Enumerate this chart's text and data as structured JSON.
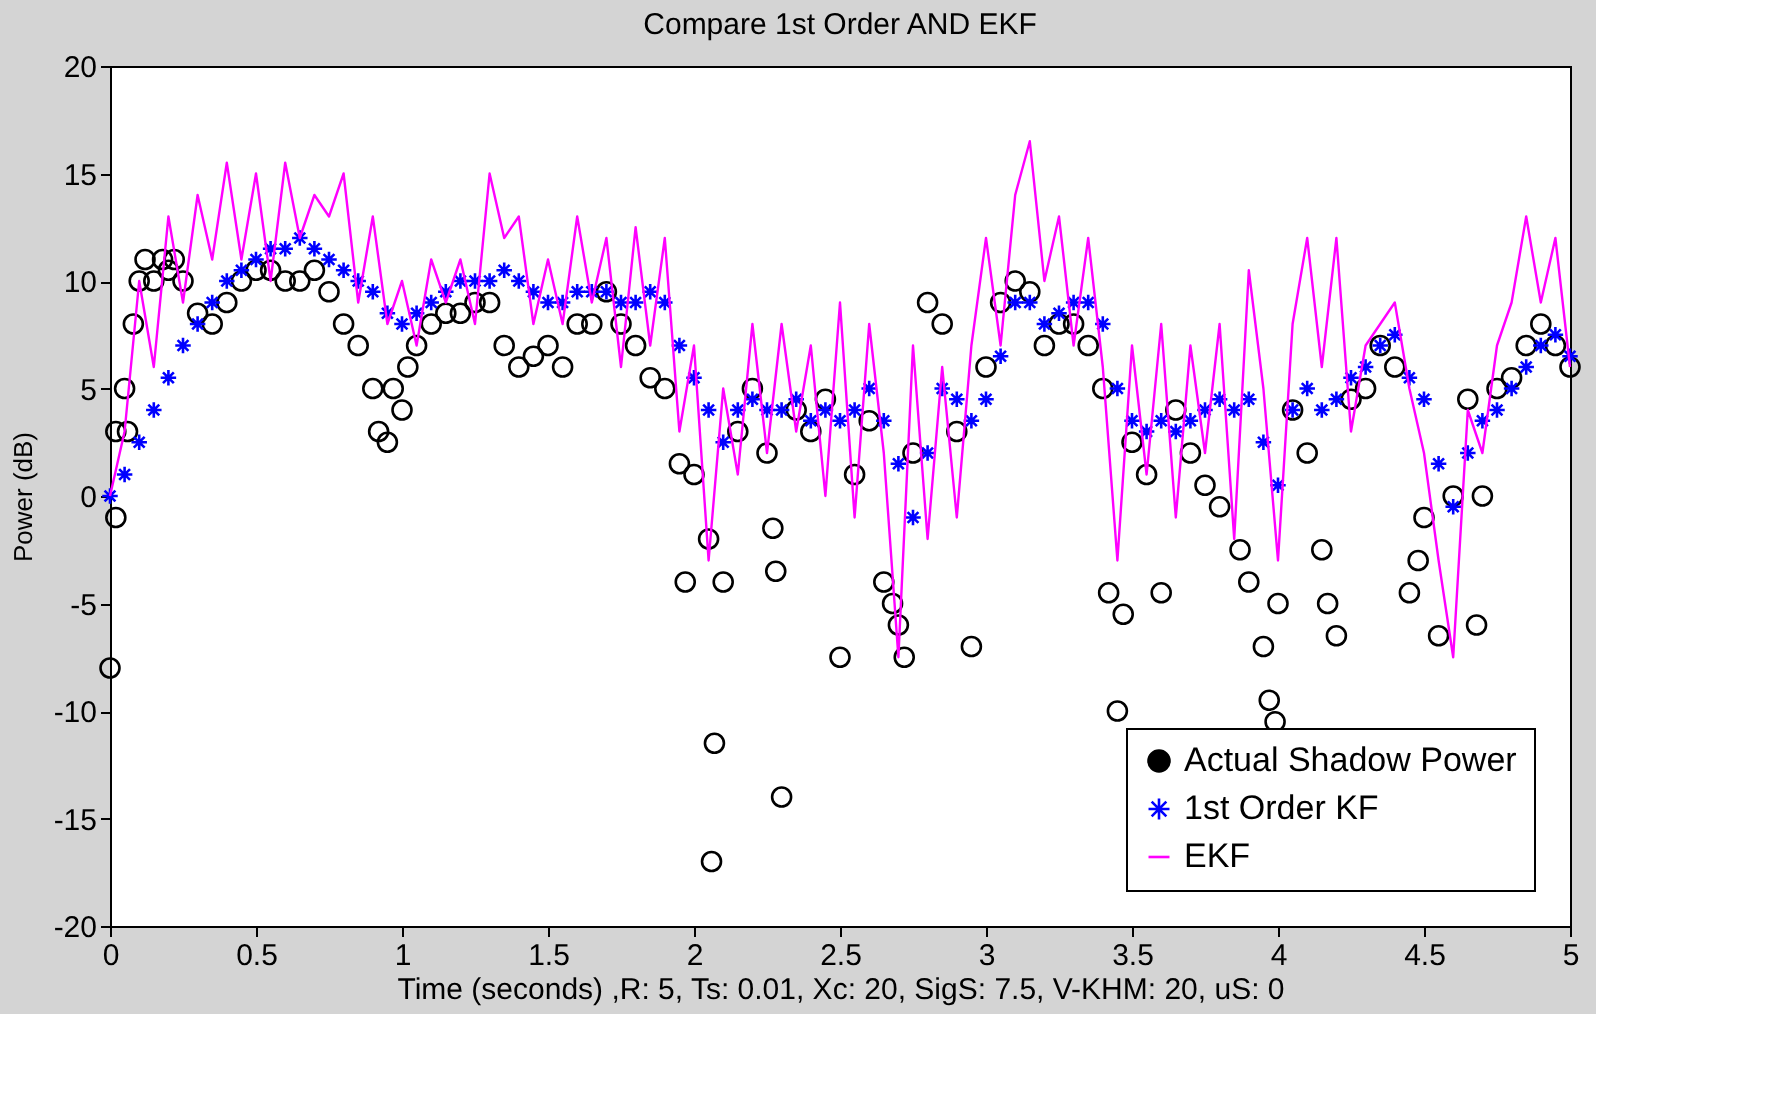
{
  "chart_data": {
    "type": "line",
    "title": "Compare 1st Order AND EKF",
    "xlabel": "Time (seconds) ,R: 5, Ts: 0.01, Xc: 20, SigS: 7.5, V-KHM: 20, uS: 0",
    "ylabel": "Power (dB)",
    "xlim": [
      0,
      5
    ],
    "xticks": [
      0,
      0.5,
      1,
      1.5,
      2,
      2.5,
      3,
      3.5,
      4,
      4.5,
      5
    ],
    "ylim": [
      -20,
      20
    ],
    "yticks": [
      -20,
      -15,
      -10,
      -5,
      0,
      5,
      10,
      15,
      20
    ],
    "grid": false,
    "legend": "bottom right",
    "series": [
      {
        "name": "Actual Shadow Power",
        "type": "scatter",
        "marker": "circle",
        "color": "#000000",
        "x": [
          0,
          0.02,
          0.02,
          0.05,
          0.06,
          0.08,
          0.1,
          0.12,
          0.15,
          0.18,
          0.2,
          0.22,
          0.25,
          0.3,
          0.35,
          0.4,
          0.45,
          0.5,
          0.55,
          0.6,
          0.65,
          0.7,
          0.75,
          0.8,
          0.85,
          0.9,
          0.92,
          0.95,
          0.97,
          1.0,
          1.02,
          1.05,
          1.1,
          1.15,
          1.2,
          1.25,
          1.3,
          1.35,
          1.4,
          1.45,
          1.5,
          1.55,
          1.6,
          1.65,
          1.7,
          1.75,
          1.8,
          1.85,
          1.9,
          1.95,
          1.97,
          2.0,
          2.05,
          2.06,
          2.07,
          2.1,
          2.15,
          2.2,
          2.25,
          2.27,
          2.28,
          2.3,
          2.35,
          2.4,
          2.45,
          2.5,
          2.55,
          2.6,
          2.65,
          2.68,
          2.7,
          2.72,
          2.75,
          2.8,
          2.85,
          2.9,
          2.95,
          3.0,
          3.05,
          3.1,
          3.15,
          3.2,
          3.25,
          3.3,
          3.35,
          3.4,
          3.42,
          3.45,
          3.47,
          3.5,
          3.55,
          3.6,
          3.65,
          3.7,
          3.75,
          3.8,
          3.87,
          3.9,
          3.95,
          3.97,
          3.99,
          4.0,
          4.05,
          4.1,
          4.15,
          4.17,
          4.2,
          4.25,
          4.3,
          4.35,
          4.4,
          4.45,
          4.48,
          4.5,
          4.55,
          4.6,
          4.65,
          4.68,
          4.7,
          4.75,
          4.8,
          4.85,
          4.9,
          4.95,
          5.0
        ],
        "values": [
          -8,
          -1,
          3,
          5,
          3,
          8,
          10,
          11,
          10,
          11,
          10.5,
          11,
          10,
          8.5,
          8,
          9,
          10,
          10.5,
          10.5,
          10,
          10,
          10.5,
          9.5,
          8,
          7,
          5,
          3,
          2.5,
          5,
          4,
          6,
          7,
          8,
          8.5,
          8.5,
          9,
          9,
          7,
          6,
          6.5,
          7,
          6,
          8,
          8,
          9.5,
          8,
          7,
          5.5,
          5,
          1.5,
          -4,
          1,
          -2,
          -17,
          -11.5,
          -4,
          3,
          5,
          2,
          -1.5,
          -3.5,
          -14,
          4,
          3,
          4.5,
          -7.5,
          1,
          3.5,
          -4,
          -5,
          -6,
          -7.5,
          2,
          9,
          8,
          3,
          -7,
          6,
          9,
          10,
          9.5,
          7,
          8,
          8,
          7,
          5,
          -4.5,
          -10,
          -5.5,
          2.5,
          1,
          -4.5,
          4,
          2,
          0.5,
          -0.5,
          -2.5,
          -4,
          -7,
          -9.5,
          -10.5,
          -5,
          4,
          2,
          -2.5,
          -5,
          -6.5,
          4.5,
          5,
          7,
          6,
          -4.5,
          -3,
          -1,
          -6.5,
          0,
          4.5,
          -6,
          0,
          5,
          5.5,
          7,
          8,
          7,
          6
        ]
      },
      {
        "name": "1st Order KF",
        "type": "scatter",
        "marker": "cross",
        "color": "#0000ff",
        "values": [
          0,
          1,
          2.5,
          4,
          5.5,
          7,
          8,
          9,
          10,
          10.5,
          11,
          11.5,
          11.5,
          12,
          11.5,
          11,
          10.5,
          10,
          9.5,
          8.5,
          8,
          8.5,
          9,
          9.5,
          10,
          10,
          10,
          10.5,
          10,
          9.5,
          9,
          9,
          9.5,
          9.5,
          9.5,
          9,
          9,
          9.5,
          9,
          7,
          5.5,
          4,
          2.5,
          4,
          4.5,
          4,
          4,
          4.5,
          3.5,
          4,
          3.5,
          4,
          5,
          3.5,
          1.5,
          -1,
          2,
          5,
          4.5,
          3.5,
          4.5,
          6.5,
          9,
          9,
          8,
          8.5,
          9,
          9,
          8,
          5,
          3.5,
          3,
          3.5,
          3,
          3.5,
          4,
          4.5,
          4,
          4.5,
          2.5,
          0.5,
          4,
          5,
          4,
          4.5,
          5.5,
          6,
          7,
          7.5,
          5.5,
          4.5,
          1.5,
          -0.5,
          2,
          3.5,
          4,
          5,
          6,
          7,
          7.5,
          6.5
        ]
      },
      {
        "name": "EKF",
        "marker": "none",
        "color": "#ff00ff",
        "values": [
          0,
          3,
          10,
          6,
          13,
          9,
          14,
          11,
          15.5,
          11,
          15,
          10,
          15.5,
          12,
          14,
          13,
          15,
          9,
          13,
          8,
          10,
          7,
          11,
          9,
          11,
          8,
          15,
          12,
          13,
          8,
          11,
          8,
          13,
          9,
          12,
          6,
          12.5,
          7,
          12,
          3,
          7,
          -3,
          5,
          1,
          8,
          2,
          8,
          3,
          7,
          0,
          9,
          -1,
          8,
          2,
          -7.5,
          7,
          -2,
          6,
          -1,
          7,
          12,
          7,
          14,
          16.5,
          10,
          13,
          7,
          12,
          6,
          -3,
          7,
          1,
          8,
          -1,
          7,
          2,
          8,
          -2,
          10.5,
          5,
          -3,
          8,
          12,
          6,
          12,
          3,
          7,
          8,
          9,
          5,
          2,
          -3,
          -7.5,
          4,
          2,
          7,
          9,
          13,
          9,
          12,
          6
        ]
      }
    ],
    "x": [
      0,
      0.05,
      0.1,
      0.15,
      0.2,
      0.25,
      0.3,
      0.35,
      0.4,
      0.45,
      0.5,
      0.55,
      0.6,
      0.65,
      0.7,
      0.75,
      0.8,
      0.85,
      0.9,
      0.95,
      1.0,
      1.05,
      1.1,
      1.15,
      1.2,
      1.25,
      1.3,
      1.35,
      1.4,
      1.45,
      1.5,
      1.55,
      1.6,
      1.65,
      1.7,
      1.75,
      1.8,
      1.85,
      1.9,
      1.95,
      2.0,
      2.05,
      2.1,
      2.15,
      2.2,
      2.25,
      2.3,
      2.35,
      2.4,
      2.45,
      2.5,
      2.55,
      2.6,
      2.65,
      2.7,
      2.75,
      2.8,
      2.85,
      2.9,
      2.95,
      3.0,
      3.05,
      3.1,
      3.15,
      3.2,
      3.25,
      3.3,
      3.35,
      3.4,
      3.45,
      3.5,
      3.55,
      3.6,
      3.65,
      3.7,
      3.75,
      3.8,
      3.85,
      3.9,
      3.95,
      4.0,
      4.05,
      4.1,
      4.15,
      4.2,
      4.25,
      4.3,
      4.35,
      4.4,
      4.45,
      4.5,
      4.55,
      4.6,
      4.65,
      4.7,
      4.75,
      4.8,
      4.85,
      4.9,
      4.95,
      5.0
    ]
  }
}
